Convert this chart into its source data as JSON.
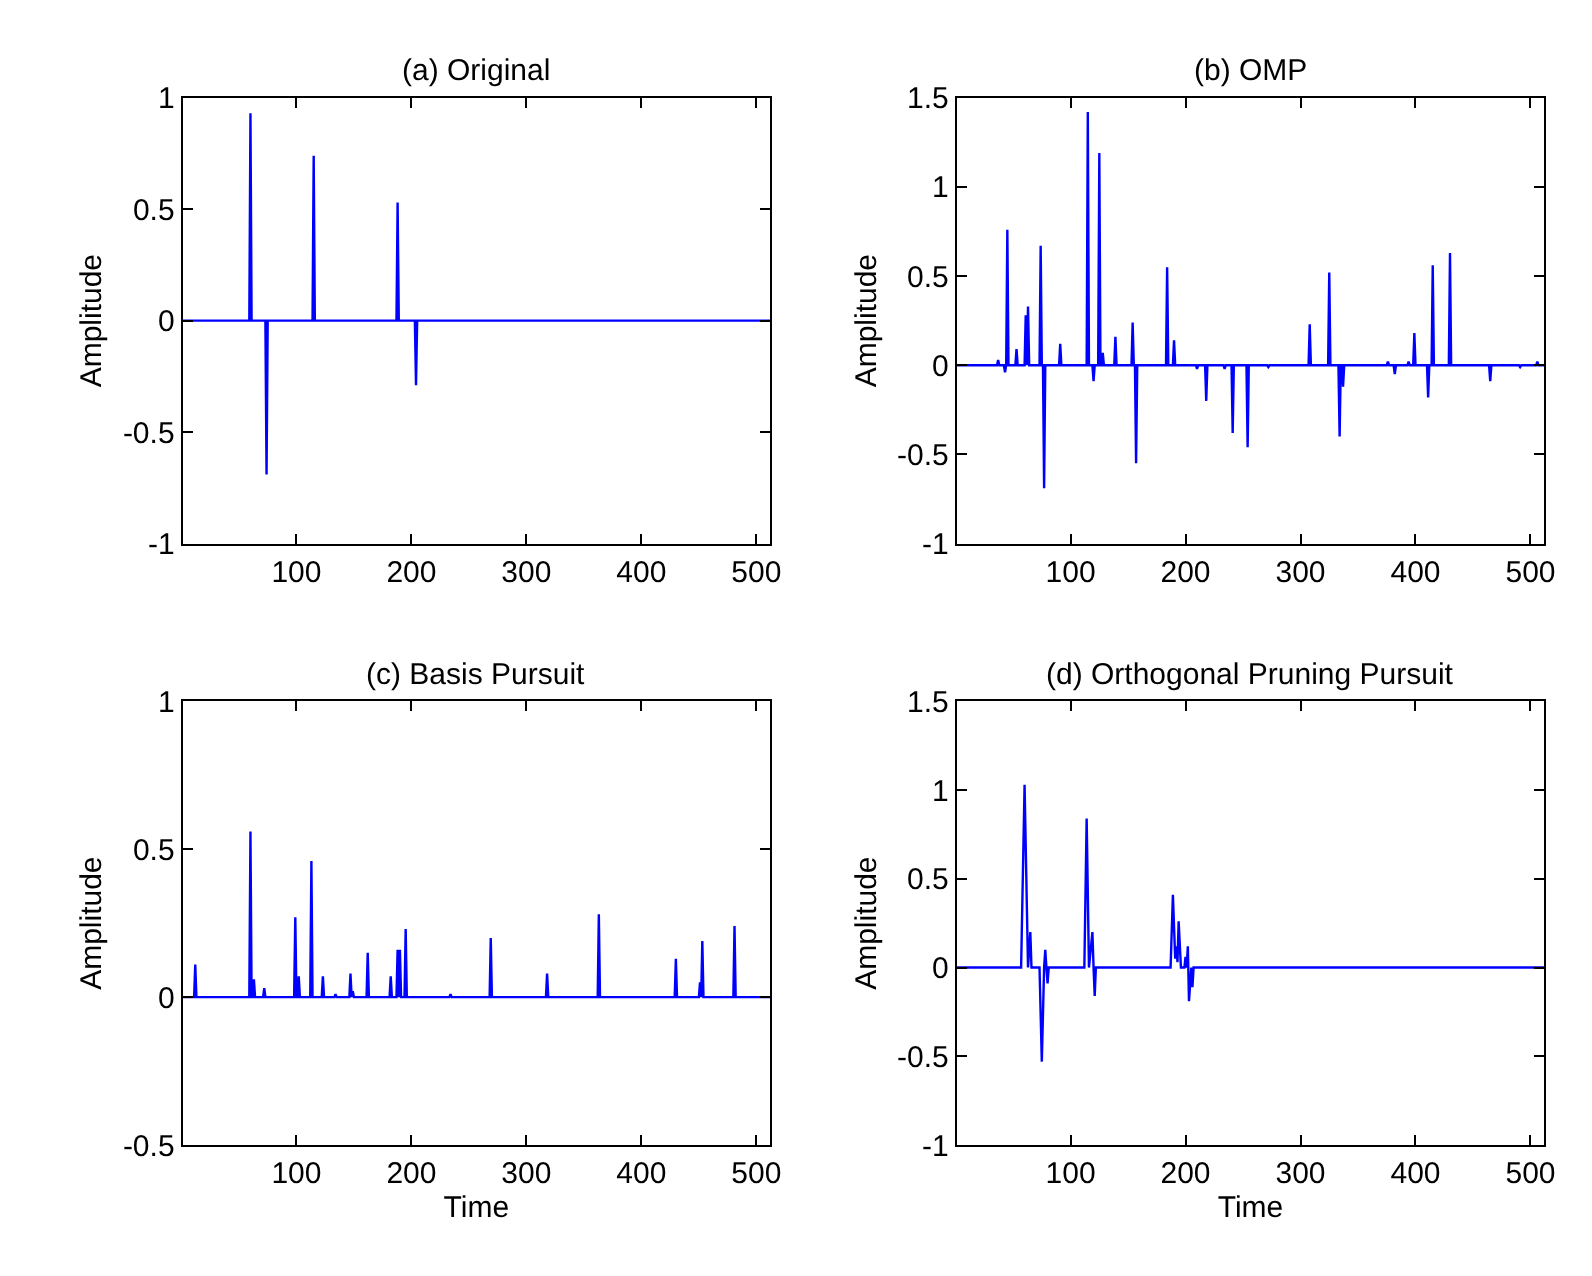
{
  "chart_data": [
    {
      "type": "line",
      "title": "(a) Original",
      "ylabel": "Amplitude",
      "color": "#0000ff",
      "xlim": [
        1,
        512
      ],
      "xticks": [
        100,
        200,
        300,
        400,
        500
      ],
      "ylim": [
        -1,
        1
      ],
      "yticks": [
        -1,
        -0.5,
        0,
        0.5,
        1
      ],
      "x": [
        1,
        59,
        60,
        61,
        73,
        74,
        75,
        114,
        115,
        116,
        187,
        188,
        189,
        203,
        204,
        205,
        512
      ],
      "values": [
        0,
        0,
        0.93,
        0,
        0,
        -0.69,
        0,
        0,
        0.74,
        0,
        0,
        0.53,
        0,
        0,
        -0.29,
        0,
        0
      ]
    },
    {
      "type": "line",
      "title": "(b) OMP",
      "ylabel": "Amplitude",
      "color": "#0000ff",
      "xlim": [
        1,
        512
      ],
      "xticks": [
        100,
        200,
        300,
        400,
        500
      ],
      "ylim": [
        -1,
        1.5
      ],
      "yticks": [
        -1,
        -0.5,
        0,
        0.5,
        1,
        1.5
      ],
      "x": [
        1,
        36,
        37,
        38,
        42,
        43,
        44,
        45,
        46,
        52,
        53,
        54,
        60,
        61,
        62,
        63,
        64,
        73,
        74,
        75,
        76,
        77,
        78,
        90,
        91,
        92,
        114,
        115,
        116,
        119,
        120,
        121,
        124,
        125,
        126,
        127,
        128,
        129,
        138,
        139,
        140,
        153,
        154,
        155,
        156,
        157,
        158,
        183,
        184,
        185,
        189,
        190,
        191,
        209,
        210,
        211,
        217,
        218,
        219,
        233,
        234,
        235,
        240,
        241,
        242,
        253,
        254,
        255,
        271,
        272,
        273,
        307,
        308,
        309,
        324,
        325,
        326,
        333,
        334,
        335,
        336,
        337,
        338,
        375,
        376,
        377,
        381,
        382,
        383,
        393,
        394,
        395,
        398,
        399,
        400,
        410,
        411,
        412,
        414,
        415,
        416,
        429,
        430,
        431,
        464,
        465,
        466,
        490,
        491,
        492,
        505,
        506,
        507,
        512
      ],
      "values": [
        0,
        0,
        0.03,
        0,
        0,
        -0.04,
        0,
        0.76,
        0,
        0,
        0.09,
        0,
        0,
        0.28,
        0,
        0.33,
        0,
        0,
        0.67,
        0,
        0,
        -0.69,
        0,
        0,
        0.12,
        0,
        0,
        1.42,
        0,
        0,
        -0.09,
        0,
        0,
        1.19,
        0,
        0,
        0.07,
        0,
        0,
        0.16,
        0,
        0,
        0.24,
        0,
        0,
        -0.55,
        0,
        0,
        0.55,
        0,
        0,
        0.14,
        0,
        0,
        -0.02,
        0,
        0,
        -0.2,
        0,
        0,
        -0.02,
        0,
        0,
        -0.38,
        0,
        0,
        -0.46,
        0,
        0,
        -0.01,
        0,
        0,
        0.23,
        0,
        0,
        0.52,
        0,
        0,
        -0.4,
        0,
        0,
        -0.12,
        0,
        0,
        0.02,
        0,
        0,
        -0.05,
        0,
        0,
        0.02,
        0,
        0,
        0.18,
        0,
        0,
        -0.18,
        0,
        0,
        0.56,
        0,
        0,
        0.63,
        0,
        0,
        -0.09,
        0,
        0,
        -0.01,
        0,
        0,
        0.02,
        0,
        0
      ]
    },
    {
      "type": "line",
      "title": "(c) Basis Pursuit",
      "ylabel": "Amplitude",
      "xlabel": "Time",
      "color": "#0000ff",
      "xlim": [
        1,
        512
      ],
      "xticks": [
        100,
        200,
        300,
        400,
        500
      ],
      "ylim": [
        -0.5,
        1
      ],
      "yticks": [
        -0.5,
        0,
        0.5,
        1
      ],
      "x": [
        1,
        11,
        12,
        13,
        59,
        60,
        61,
        62,
        63,
        64,
        71,
        72,
        73,
        98,
        99,
        100,
        101,
        102,
        103,
        112,
        113,
        114,
        122,
        123,
        124,
        133,
        134,
        135,
        146,
        147,
        148,
        149,
        150,
        161,
        162,
        163,
        181,
        182,
        183,
        187,
        188,
        189,
        190,
        191,
        194,
        195,
        196,
        233,
        234,
        235,
        268,
        269,
        270,
        317,
        318,
        319,
        362,
        363,
        364,
        429,
        430,
        431,
        450,
        451,
        452,
        453,
        454,
        480,
        481,
        482,
        512
      ],
      "values": [
        0,
        0,
        0.11,
        0,
        0,
        0.56,
        0,
        0,
        0.06,
        0,
        0,
        0.03,
        0,
        0,
        0.27,
        0,
        0,
        0.07,
        0,
        0,
        0.46,
        0,
        0,
        0.07,
        0,
        0,
        0.01,
        0,
        0,
        0.08,
        0,
        0.02,
        0,
        0,
        0.15,
        0,
        0,
        0.07,
        0,
        0,
        0.16,
        0,
        0.16,
        0,
        0,
        0.23,
        0,
        0,
        0.01,
        0,
        0,
        0.2,
        0,
        0,
        0.08,
        0,
        0,
        0.28,
        0,
        0,
        0.13,
        0,
        0,
        0.05,
        0,
        0.19,
        0,
        0,
        0.24,
        0,
        0
      ]
    },
    {
      "type": "line",
      "title": "(d) Orthogonal Pruning Pursuit",
      "ylabel": "Amplitude",
      "xlabel": "Time",
      "color": "#0000ff",
      "xlim": [
        1,
        512
      ],
      "xticks": [
        100,
        200,
        300,
        400,
        500
      ],
      "ylim": [
        -1,
        1.5
      ],
      "yticks": [
        -1,
        -0.5,
        0,
        0.5,
        1,
        1.5
      ],
      "x": [
        1,
        57,
        60,
        63,
        65,
        66,
        73,
        75,
        77,
        78,
        79,
        80,
        81,
        112,
        114,
        116,
        119,
        120,
        121,
        122,
        187,
        189,
        191,
        192,
        193,
        194,
        196,
        199,
        200,
        201,
        202,
        203,
        205,
        206,
        207,
        512
      ],
      "values": [
        0,
        0,
        1.03,
        0,
        0.2,
        0,
        0,
        -0.53,
        0,
        0.1,
        0,
        -0.09,
        0,
        0,
        0.84,
        0,
        0.2,
        0,
        -0.16,
        0,
        0,
        0.41,
        0.05,
        0.12,
        0.03,
        0.26,
        0,
        0,
        0.06,
        0,
        0.12,
        -0.19,
        0,
        -0.11,
        0,
        0
      ]
    }
  ]
}
